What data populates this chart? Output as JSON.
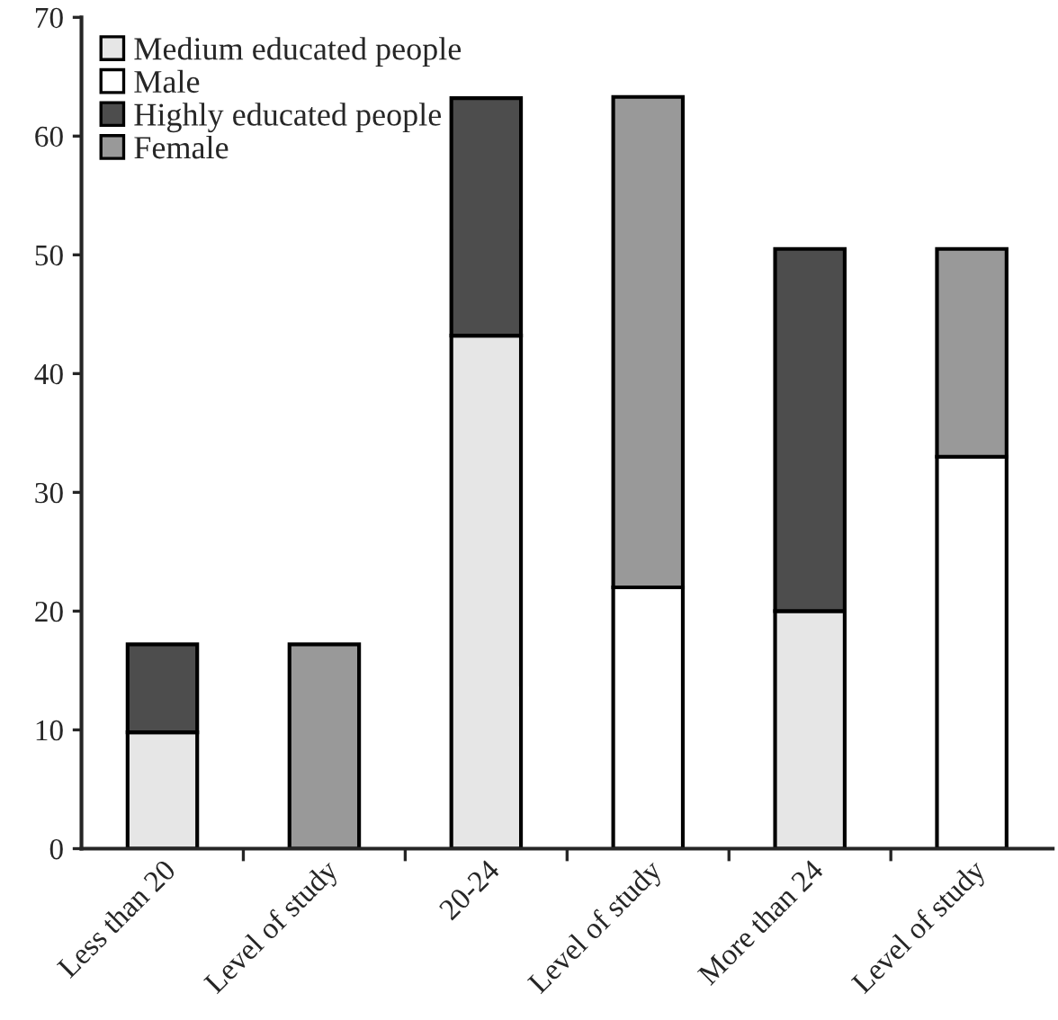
{
  "chart_data": {
    "type": "bar",
    "stacked": true,
    "categories": [
      "Less than 20",
      "Level of study",
      "20-24",
      "Level of study",
      "More than 24",
      "Level of study"
    ],
    "series": [
      {
        "name": "Medium educated people",
        "color": "#e6e6e6",
        "values": [
          9.8,
          null,
          43.2,
          null,
          20,
          null
        ]
      },
      {
        "name": "Male",
        "color": "#ffffff",
        "values": [
          null,
          null,
          null,
          22,
          null,
          33
        ]
      },
      {
        "name": "Highly educated people",
        "color": "#4d4d4d",
        "values": [
          7.4,
          null,
          20,
          null,
          30.5,
          null
        ]
      },
      {
        "name": "Female",
        "color": "#999999",
        "values": [
          null,
          17.2,
          null,
          41.3,
          null,
          17.5
        ]
      }
    ],
    "ylim": [
      0,
      70
    ],
    "yticks": [
      0,
      10,
      20,
      30,
      40,
      50,
      60,
      70
    ],
    "grid": false,
    "legend": "top left"
  }
}
